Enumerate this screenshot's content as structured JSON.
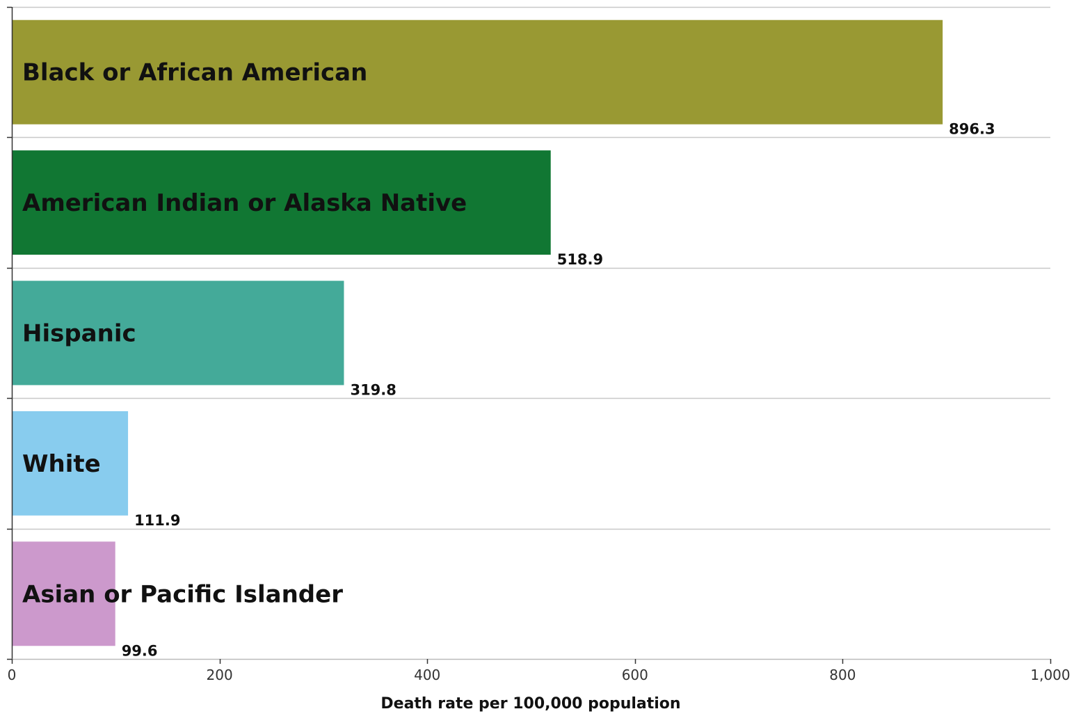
{
  "chart_data": {
    "type": "bar",
    "orientation": "horizontal",
    "categories": [
      "Black or African American",
      "American Indian or Alaska Native",
      "Hispanic",
      "White",
      "Asian or Pacific Islander"
    ],
    "values": [
      896.3,
      518.9,
      319.8,
      111.9,
      99.6
    ],
    "value_labels": [
      "896.3",
      "518.9",
      "319.8",
      "111.9",
      "99.6"
    ],
    "colors": [
      "#999933",
      "#117733",
      "#44AA99",
      "#88CCEE",
      "#CC99CC"
    ],
    "title": "",
    "xlabel": "Death rate per 100,000 population",
    "ylabel": "",
    "xlim": [
      0,
      1000
    ],
    "xticks": [
      0,
      200,
      400,
      600,
      800,
      1000
    ],
    "xtick_labels": [
      "0",
      "200",
      "400",
      "600",
      "800",
      "1,000"
    ],
    "grid": "horizontal separators between categories",
    "legend": "none"
  }
}
